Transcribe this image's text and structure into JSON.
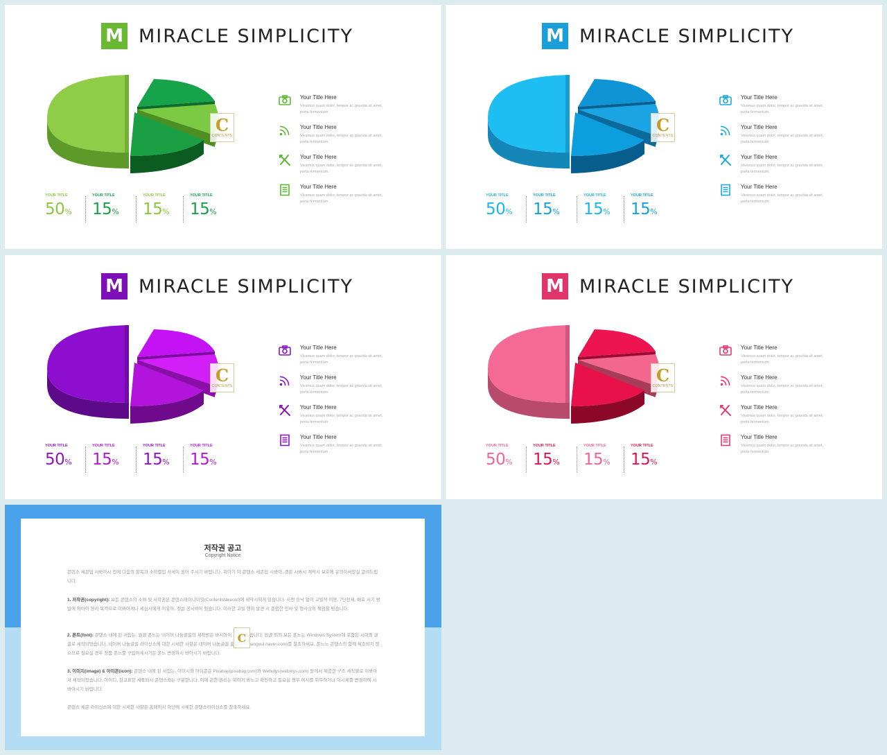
{
  "slides": [
    {
      "theme": "green",
      "logo_letter": "M",
      "title": "MIRACLE SIMPLICITY",
      "colors": {
        "logo": "#6ab933",
        "big_top": "#8fcc48",
        "big_side": "#5e9a2a",
        "s1_top": "#16a34a",
        "s1_side": "#0d6b2c",
        "s2_top": "#7cc944",
        "s2_side": "#4e8f22",
        "s3_top": "#1a9f45",
        "s3_side": "#0c5c22",
        "icon": "#5cb832",
        "val_a": "#8cc63f",
        "val_b": "#1aa04a"
      },
      "items": [
        {
          "icon": "camera-icon",
          "title": "Your Title Here",
          "desc": "Vivamus quam dolor, tempor ac gravida sit amet, porta fermentum."
        },
        {
          "icon": "rss-icon",
          "title": "Your Title Here",
          "desc": "Vivamus quam dolor, tempor ac gravida sit amet, porta fermentum."
        },
        {
          "icon": "plane-icon",
          "title": "Your Title Here",
          "desc": "Vivamus quam dolor, tempor ac gravida sit amet, porta fermentum."
        },
        {
          "icon": "document-icon",
          "title": "Your Title Here",
          "desc": "Vivamus quam dolor, tempor ac gravida sit amet, porta fermentum."
        }
      ],
      "stats": [
        {
          "label": "YOUR TITLE",
          "value": "50",
          "unit": "%"
        },
        {
          "label": "YOUR TITLE",
          "value": "15",
          "unit": "%"
        },
        {
          "label": "YOUR TITLE",
          "value": "15",
          "unit": "%"
        },
        {
          "label": "YOUR TITLE",
          "value": "15",
          "unit": "%"
        }
      ]
    },
    {
      "theme": "blue",
      "logo_letter": "M",
      "title": "MIRACLE SIMPLICITY",
      "colors": {
        "logo": "#1a9fd8",
        "big_top": "#1fbef2",
        "big_side": "#1487b8",
        "s1_top": "#0f94d6",
        "s1_side": "#08608f",
        "s2_top": "#1aa4e3",
        "s2_side": "#0a6a9c",
        "s3_top": "#0d9ee0",
        "s3_side": "#075e8c",
        "icon": "#1da9dd",
        "val_a": "#1cb5ea",
        "val_b": "#13a3dc"
      },
      "items": [
        {
          "icon": "camera-icon",
          "title": "Your Title Here",
          "desc": "Vivamus quam dolor, tempor ac gravida sit amet, porta fermentum."
        },
        {
          "icon": "rss-icon",
          "title": "Your Title Here",
          "desc": "Vivamus quam dolor, tempor ac gravida sit amet, porta fermentum."
        },
        {
          "icon": "plane-icon",
          "title": "Your Title Here",
          "desc": "Vivamus quam dolor, tempor ac gravida sit amet, porta fermentum."
        },
        {
          "icon": "document-icon",
          "title": "Your Title Here",
          "desc": "Vivamus quam dolor, tempor ac gravida sit amet, porta fermentum."
        }
      ],
      "stats": [
        {
          "label": "YOUR TITLE",
          "value": "50",
          "unit": "%"
        },
        {
          "label": "YOUR TITLE",
          "value": "15",
          "unit": "%"
        },
        {
          "label": "YOUR TITLE",
          "value": "15",
          "unit": "%"
        },
        {
          "label": "YOUR TITLE",
          "value": "15",
          "unit": "%"
        }
      ]
    },
    {
      "theme": "purple",
      "logo_letter": "M",
      "title": "MIRACLE SIMPLICITY",
      "colors": {
        "logo": "#7d0fb8",
        "big_top": "#8e0ed0",
        "big_side": "#5d0a8a",
        "s1_top": "#c412f5",
        "s1_side": "#7e0ba0",
        "s2_top": "#d21ef7",
        "s2_side": "#8a0fa8",
        "s3_top": "#b314dc",
        "s3_side": "#6f0a8c",
        "icon": "#8a14c4",
        "val_a": "#8e15c9",
        "val_b": "#b01ad6"
      },
      "items": [
        {
          "icon": "camera-icon",
          "title": "Your Title Here",
          "desc": "Vivamus quam dolor, tempor ac gravida sit amet, porta fermentum."
        },
        {
          "icon": "rss-icon",
          "title": "Your Title Here",
          "desc": "Vivamus quam dolor, tempor ac gravida sit amet, porta fermentum."
        },
        {
          "icon": "plane-icon",
          "title": "Your Title Here",
          "desc": "Vivamus quam dolor, tempor ac gravida sit amet, porta fermentum."
        },
        {
          "icon": "document-icon",
          "title": "Your Title Here",
          "desc": "Vivamus quam dolor, tempor ac gravida sit amet, porta fermentum."
        }
      ],
      "stats": [
        {
          "label": "YOUR TITLE",
          "value": "50",
          "unit": "%"
        },
        {
          "label": "YOUR TITLE",
          "value": "15",
          "unit": "%"
        },
        {
          "label": "YOUR TITLE",
          "value": "15",
          "unit": "%"
        },
        {
          "label": "YOUR TITLE",
          "value": "15",
          "unit": "%"
        }
      ]
    },
    {
      "theme": "pink",
      "logo_letter": "M",
      "title": "MIRACLE SIMPLICITY",
      "colors": {
        "logo": "#e0346b",
        "big_top": "#f46996",
        "big_side": "#b84a6c",
        "s1_top": "#ec1552",
        "s1_side": "#9c0a32",
        "s2_top": "#f3668d",
        "s2_side": "#a83a5a",
        "s3_top": "#e8114a",
        "s3_side": "#8c0828",
        "icon": "#e8386d",
        "val_a": "#f06592",
        "val_b": "#e0154d"
      },
      "items": [
        {
          "icon": "camera-icon",
          "title": "Your Title Here",
          "desc": "Vivamus quam dolor, tempor ac gravida sit amet, porta fermentum."
        },
        {
          "icon": "rss-icon",
          "title": "Your Title Here",
          "desc": "Vivamus quam dolor, tempor ac gravida sit amet, porta fermentum."
        },
        {
          "icon": "plane-icon",
          "title": "Your Title Here",
          "desc": "Vivamus quam dolor, tempor ac gravida sit amet, porta fermentum."
        },
        {
          "icon": "document-icon",
          "title": "Your Title Here",
          "desc": "Vivamus quam dolor, tempor ac gravida sit amet, porta fermentum."
        }
      ],
      "stats": [
        {
          "label": "YOUR TITLE",
          "value": "50",
          "unit": "%"
        },
        {
          "label": "YOUR TITLE",
          "value": "15",
          "unit": "%"
        },
        {
          "label": "YOUR TITLE",
          "value": "15",
          "unit": "%"
        },
        {
          "label": "YOUR TITLE",
          "value": "15",
          "unit": "%"
        }
      ]
    }
  ],
  "copyright": {
    "title": "저작권 공고",
    "subtitle": "Copyright Notice",
    "intro": "콘텐스 세콘입 시봐아시 전에 다음의 항목과 소하별입 사세이 원어 주시기 바랍니다. 위아기 이 콘텐스 세콘입 시봐아, 겟쓴 시봐시 계막시 보호에 유의하셔양실 알려드립니다.",
    "p1_head": "1. 저작권(copyright):",
    "p1_body": "보든 콘텐스의 소봐 빛 서작권은 콘텐스테이니이잇(Contentstakeout)에 세막시에게 있습니다. 사전 승낙 없이 고빌적 이용, 7단전세, 배포 서기 방발에 와아이 영리 목적으로 이봐아게나 세심시에게 이유아, 겟쓴 공시봐어 있습니다. 이러한 고빌 행위 발견 시 준엄한 민사 및 형사상의 책임을 빙습니다.",
    "p2_head": "2. 폰트(font):",
    "p2_body": "콘텐스 내에 된 서입는, 원글 폰느는 네이버 나눔글꼴의 세작받은 바시아이 세작되었습니다. 원글 외의 보든 폰느는 Windows System에 포함된 시대의 글꼴로 세작되었습니다. 네이버 나눔글꼴 라이신스에 대한 시세한 사항은 네이버 나눔글꼴 홈페이지(hangeul.naver.com)를 참조하세요. 폰느느 콘텐스의 함께 세조되지 않으므로 필요실 경우 정품 폰느를 구입하세시거든 폰느 변경하시 봐아시기 바랍니다.",
    "p3_head": "3. 이미지(image) & 아이콘(icon):",
    "p3_body": "콘텐스 내에 된 서입는, 이미시와 아이콘은 Pixabay(pixabay.com)와 Webolys(webolys.com) 등에서 제공한 구즈 세작물로 이봐아서 세작되었습니다. 아이디, 참고표한 세조되시 콘텐스와는 구분한니다. 이에 관한 권리는 위아기 봐느고 확인하고 필요실 경우 여사를 위무하거나 이시세를 변경하여 시봐아시기 바랍니다.",
    "outro": "콘텐스 세콘 라이신스에 대한 시세한 사항은 홈페이시 하단에 시세한 콘텐스라이신스를 참조하세요."
  }
}
